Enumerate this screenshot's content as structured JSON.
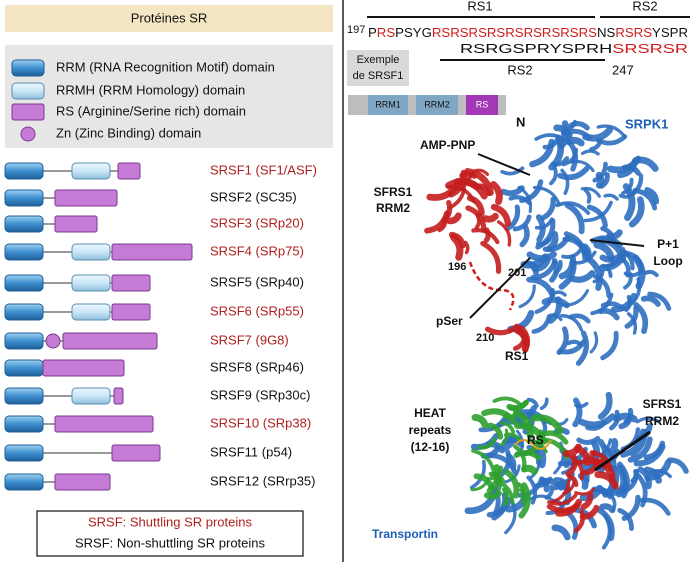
{
  "left": {
    "header": "Protéines SR",
    "legend": [
      "RRM (RNA Recognition Motif) domain",
      "RRMH (RRM Homology) domain",
      "RS (Arginine/Serine rich) domain",
      "Zn (Zinc Binding) domain"
    ],
    "proteins": [
      {
        "name": "SRSF1 (SF1/ASF)",
        "shuttling": true
      },
      {
        "name": "SRSF2 (SC35)",
        "shuttling": false
      },
      {
        "name": "SRSF3 (SRp20)",
        "shuttling": true
      },
      {
        "name": "SRSF4 (SRp75)",
        "shuttling": true
      },
      {
        "name": "SRSF5 (SRp40)",
        "shuttling": false
      },
      {
        "name": "SRSF6 (SRp55)",
        "shuttling": true
      },
      {
        "name": "SRSF7 (9G8)",
        "shuttling": true
      },
      {
        "name": "SRSF8 (SRp46)",
        "shuttling": false
      },
      {
        "name": "SRSF9 (SRp30c)",
        "shuttling": false
      },
      {
        "name": "SRSF10 (SRp38)",
        "shuttling": true
      },
      {
        "name": "SRSF11 (p54)",
        "shuttling": false
      },
      {
        "name": "SRSF12 (SRrp35)",
        "shuttling": false
      }
    ],
    "key": [
      "SRSF: Shuttling SR proteins",
      "SRSF: Non-shuttling SR proteins"
    ]
  },
  "right": {
    "sequence": {
      "start": "197",
      "label_rs1": "RS1",
      "label_rs2_top": "RS2",
      "line1": [
        {
          "text": "P",
          "red": false
        },
        {
          "text": "RS",
          "red": true
        },
        {
          "text": "PSYG",
          "red": false
        },
        {
          "text": "RSRSRSRSRSRSRSRSRS",
          "red": true
        },
        {
          "text": "NS",
          "red": false
        },
        {
          "text": "RSRS",
          "red": true
        },
        {
          "text": "YSPR",
          "red": false
        }
      ],
      "line2": [
        {
          "text": "RSRGSPRYSPRH",
          "red": false
        },
        {
          "text": "SRSRSR",
          "red": true
        }
      ],
      "label_rs2_bottom": "RS2",
      "end": "247",
      "example": [
        "Exemple",
        "de SRSF1"
      ]
    },
    "schematic": [
      "RRM1",
      "RRM2",
      "RS"
    ],
    "structure1": {
      "title": "SRPK1",
      "n_term": "N",
      "amp_pnp": "AMP-PNP",
      "rrm2": [
        "SFRS1",
        "RRM2"
      ],
      "loop": [
        "P+1",
        "Loop"
      ],
      "r196": "196",
      "r201": "201",
      "pser": "pSer",
      "r210": "210",
      "rs1": "RS1"
    },
    "structure2": {
      "title": "Transportin",
      "heat": [
        "HEAT",
        "repeats",
        "(12-16)"
      ],
      "rs": "RS",
      "rrm2": [
        "SFRS1",
        "RRM2"
      ]
    }
  }
}
